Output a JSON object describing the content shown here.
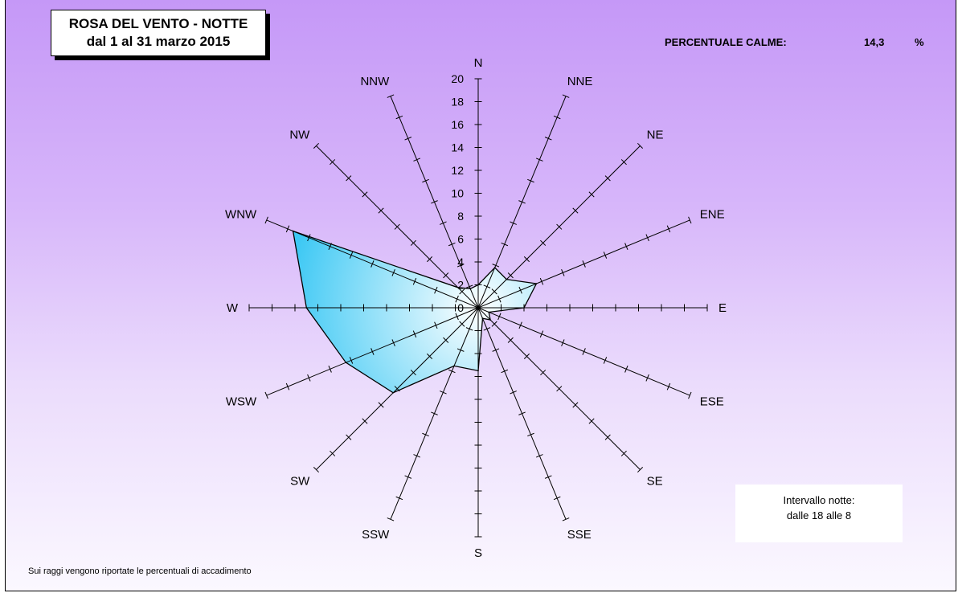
{
  "title": {
    "line1": "ROSA DEL VENTO - NOTTE",
    "line2": "dal 1 al 31 marzo 2015"
  },
  "calm": {
    "label": "PERCENTUALE CALME:",
    "value": "14,3",
    "unit": "%"
  },
  "interval": {
    "line1": "Intervallo notte:",
    "line2": "dalle 18 alle 8"
  },
  "footnote": "Sui raggi vengono riportate le percentuali di accadimento",
  "colors": {
    "fill_outer": "#3cc8f4",
    "fill_inner": "#ffffff",
    "background_top": "#c598f7",
    "background_bottom": "#fbf8ff"
  },
  "chart_data": {
    "type": "radar",
    "directions": [
      "N",
      "NNE",
      "NE",
      "ENE",
      "E",
      "ESE",
      "SE",
      "SSE",
      "S",
      "SSW",
      "SW",
      "WSW",
      "W",
      "WNW",
      "NW",
      "NNW"
    ],
    "values": [
      2.0,
      3.8,
      3.5,
      5.5,
      4.0,
      1.0,
      1.5,
      1.0,
      5.5,
      5.5,
      10.5,
      12.5,
      15.0,
      17.5,
      2.5,
      1.8
    ],
    "radial_range": [
      0,
      20
    ],
    "radial_ticks": [
      "0",
      "2",
      "4",
      "6",
      "8",
      "10",
      "12",
      "14",
      "16",
      "18",
      "20"
    ],
    "grid": true
  }
}
